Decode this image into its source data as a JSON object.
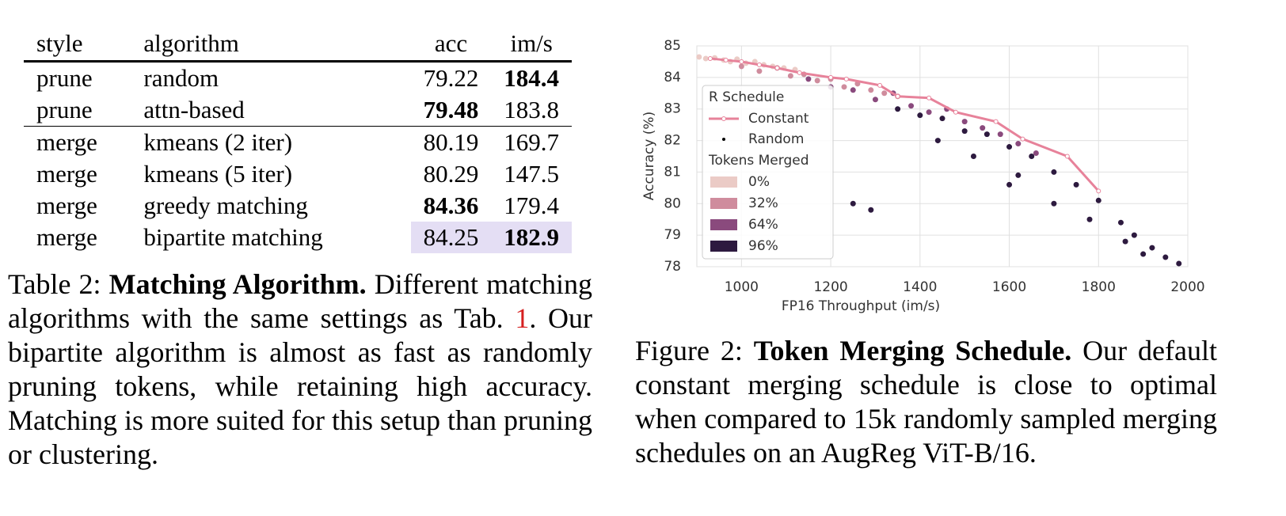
{
  "table": {
    "header": [
      "style",
      "algorithm",
      "acc",
      "im/s"
    ],
    "rows": [
      [
        "prune",
        "random",
        "79.22",
        "184.4"
      ],
      [
        "prune",
        "attn-based",
        "79.48",
        "183.8"
      ],
      [
        "merge",
        "kmeans (2 iter)",
        "80.19",
        "169.7"
      ],
      [
        "merge",
        "kmeans (5 iter)",
        "80.29",
        "147.5"
      ],
      [
        "merge",
        "greedy matching",
        "84.36",
        "179.4"
      ],
      [
        "merge",
        "bipartite matching",
        "84.25",
        "182.9"
      ]
    ]
  },
  "table_caption": {
    "label": "Table 2:",
    "title": "Matching Algorithm.",
    "text": "Different matching algorithms with the same settings as Tab.",
    "ref": "1",
    "rest": ". Our bipartite algorithm is almost as fast as randomly pruning tokens, while retaining high accuracy. Matching is more suited for this setup than pruning or clustering."
  },
  "chart_data": {
    "type": "scatter",
    "xlabel": "FP16 Throughput (im/s)",
    "ylabel": "Accuracy (%)",
    "xlim": [
      900,
      2000
    ],
    "ylim": [
      78,
      85
    ],
    "xticks": [
      1000,
      1200,
      1400,
      1600,
      1800,
      2000
    ],
    "yticks": [
      78,
      79,
      80,
      81,
      82,
      83,
      84,
      85
    ],
    "grid": true,
    "legend": {
      "corner": "lower left",
      "title": "R Schedule",
      "entries": [
        "Constant",
        "Random"
      ],
      "hue_title": "Tokens Merged"
    },
    "series": [
      {
        "name": "0%",
        "color": "#ebcbc6",
        "x": [
          905,
          920,
          940,
          960,
          975,
          990,
          1010,
          1030,
          1050,
          1070,
          1095,
          1120
        ],
        "values": [
          84.65,
          84.6,
          84.62,
          84.55,
          84.5,
          84.58,
          84.45,
          84.5,
          84.4,
          84.35,
          84.3,
          84.25
        ]
      },
      {
        "name": "32%",
        "color": "#cf8c9d",
        "x": [
          1000,
          1040,
          1080,
          1110,
          1140,
          1170,
          1200,
          1230,
          1260,
          1290,
          1320,
          1350
        ],
        "values": [
          84.35,
          84.2,
          84.3,
          84.05,
          84.1,
          83.9,
          83.95,
          83.7,
          83.8,
          83.6,
          83.5,
          83.4
        ]
      },
      {
        "name": "64%",
        "color": "#8a4a7d",
        "x": [
          1150,
          1200,
          1250,
          1300,
          1340,
          1380,
          1420,
          1460,
          1500,
          1540,
          1580,
          1620,
          1660
        ],
        "values": [
          83.95,
          83.7,
          83.6,
          83.3,
          83.5,
          83.1,
          82.9,
          83.0,
          82.6,
          82.4,
          82.2,
          81.9,
          81.6
        ]
      },
      {
        "name": "96%",
        "color": "#2d1a3f",
        "x": [
          1350,
          1400,
          1450,
          1500,
          1550,
          1600,
          1650,
          1700,
          1750,
          1800,
          1850,
          1880,
          1920,
          1950,
          1980,
          1440,
          1520,
          1620,
          1700,
          1780,
          1860,
          1900,
          1250,
          1290,
          1600
        ],
        "values": [
          83.0,
          82.8,
          82.7,
          82.3,
          82.2,
          81.8,
          81.5,
          81.0,
          80.6,
          80.1,
          79.4,
          79.0,
          78.6,
          78.3,
          78.1,
          82.0,
          81.5,
          80.9,
          80.0,
          79.5,
          78.8,
          78.4,
          80.0,
          79.8,
          80.6
        ]
      },
      {
        "name": "Constant",
        "color": "#e7829a",
        "style": "line",
        "x": [
          930,
          965,
          1000,
          1040,
          1080,
          1130,
          1200,
          1235,
          1310,
          1350,
          1420,
          1480,
          1570,
          1630,
          1730,
          1800
        ],
        "values": [
          84.6,
          84.55,
          84.5,
          84.4,
          84.3,
          84.15,
          84.0,
          83.95,
          83.75,
          83.4,
          83.35,
          82.9,
          82.6,
          82.05,
          81.5,
          80.4
        ]
      }
    ]
  },
  "figure_caption": {
    "label": "Figure 2:",
    "title": "Token Merging Schedule.",
    "text": "Our default constant merging schedule is close to optimal when compared to 15k randomly sampled merging schedules on an AugReg ViT-B/16."
  }
}
